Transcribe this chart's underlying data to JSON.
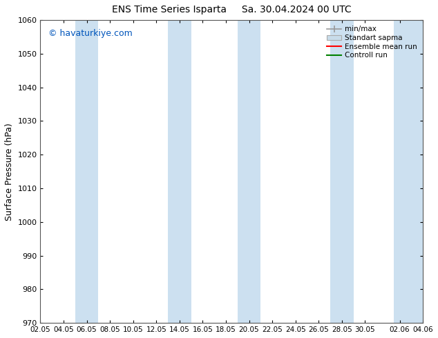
{
  "title_left": "ENS Time Series Isparta",
  "title_right": "Sa. 30.04.2024 00 UTC",
  "ylabel": "Surface Pressure (hPa)",
  "ylim": [
    970,
    1060
  ],
  "yticks": [
    970,
    980,
    990,
    1000,
    1010,
    1020,
    1030,
    1040,
    1050,
    1060
  ],
  "xlabel_ticks": [
    "02.05",
    "04.05",
    "06.05",
    "08.05",
    "10.05",
    "12.05",
    "14.05",
    "16.05",
    "18.05",
    "20.05",
    "22.05",
    "24.05",
    "26.05",
    "28.05",
    "30.05",
    "02.06",
    "04.06"
  ],
  "watermark": "© havaturkiye.com",
  "watermark_color": "#0055bb",
  "background_color": "#ffffff",
  "plot_bg_color": "#ffffff",
  "shaded_band_color": "#cce0f0",
  "shaded_band_alpha": 1.0,
  "legend_labels": [
    "min/max",
    "Standart sapma",
    "Ensemble mean run",
    "Controll run"
  ],
  "legend_line_red": "#ff0000",
  "legend_line_green": "#008000",
  "legend_line_gray": "#999999",
  "fig_width": 6.34,
  "fig_height": 4.9,
  "dpi": 100
}
